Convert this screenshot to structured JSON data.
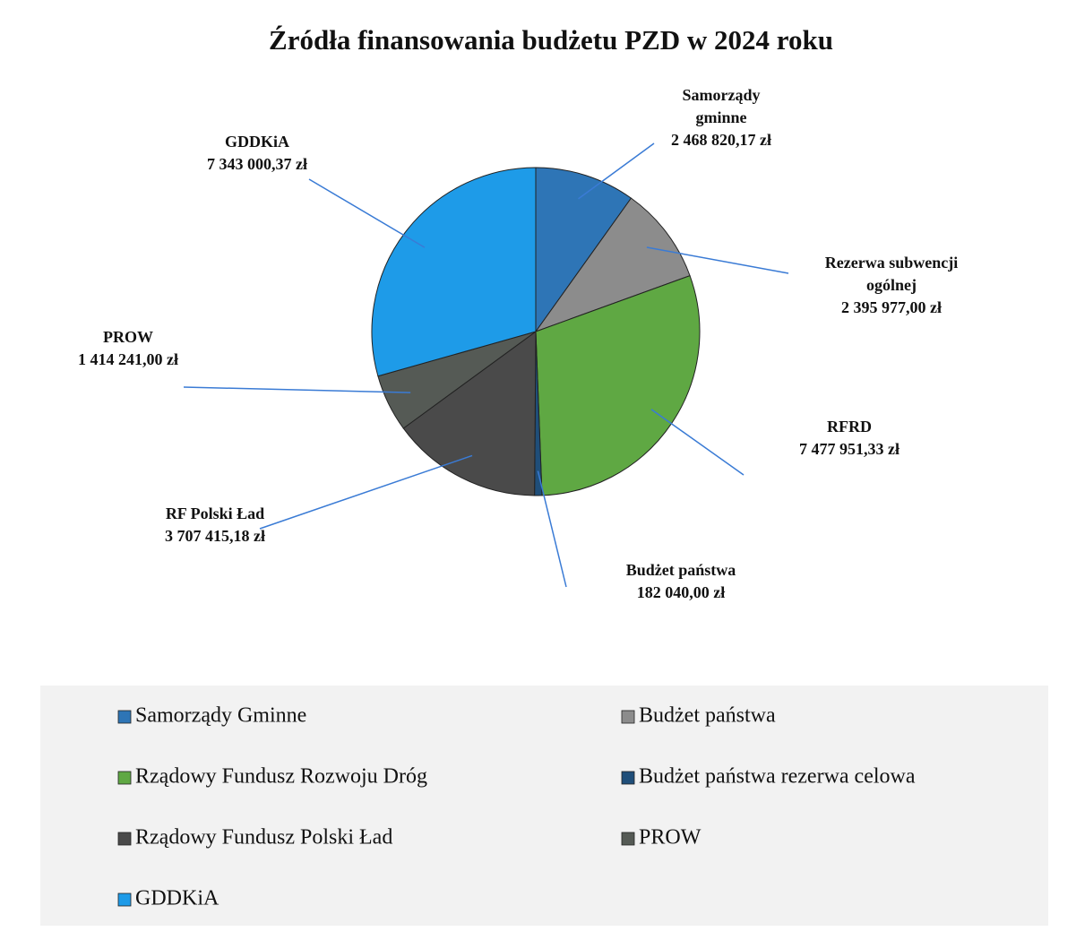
{
  "chart_data": {
    "type": "pie",
    "title": "Źródła finansowania budżetu PZD w 2024 roku",
    "categories": [
      "Samorządy Gminne",
      "Budżet państwa",
      "Rządowy Fundusz Rozwoju Dróg",
      "Budżet państwa rezerwa celowa",
      "Rządowy Fundusz Polski Ład",
      "PROW",
      "GDDKiA"
    ],
    "slice_labels": [
      [
        "Samorządy",
        "gminne"
      ],
      [
        "Rezerwa subwencji",
        "ogólnej"
      ],
      [
        "RFRD"
      ],
      [
        "Budżet państwa"
      ],
      [
        "RF Polski Ład"
      ],
      [
        "PROW"
      ],
      [
        "GDDKiA"
      ]
    ],
    "values": [
      2468820.17,
      2395977.0,
      7477951.33,
      182040.0,
      3707415.18,
      1414241.0,
      7343000.37
    ],
    "value_labels": [
      "2 468 820,17 zł",
      "2 395 977,00 zł",
      "7 477 951,33 zł",
      "182 040,00 zł",
      "3 707 415,18 zł",
      "1 414 241,00 zł",
      "7 343 000,37 zł"
    ],
    "colors": [
      "#2e75b6",
      "#8c8c8c",
      "#5fa843",
      "#1f4e79",
      "#4a4a4a",
      "#555a55",
      "#1e9be8"
    ]
  }
}
